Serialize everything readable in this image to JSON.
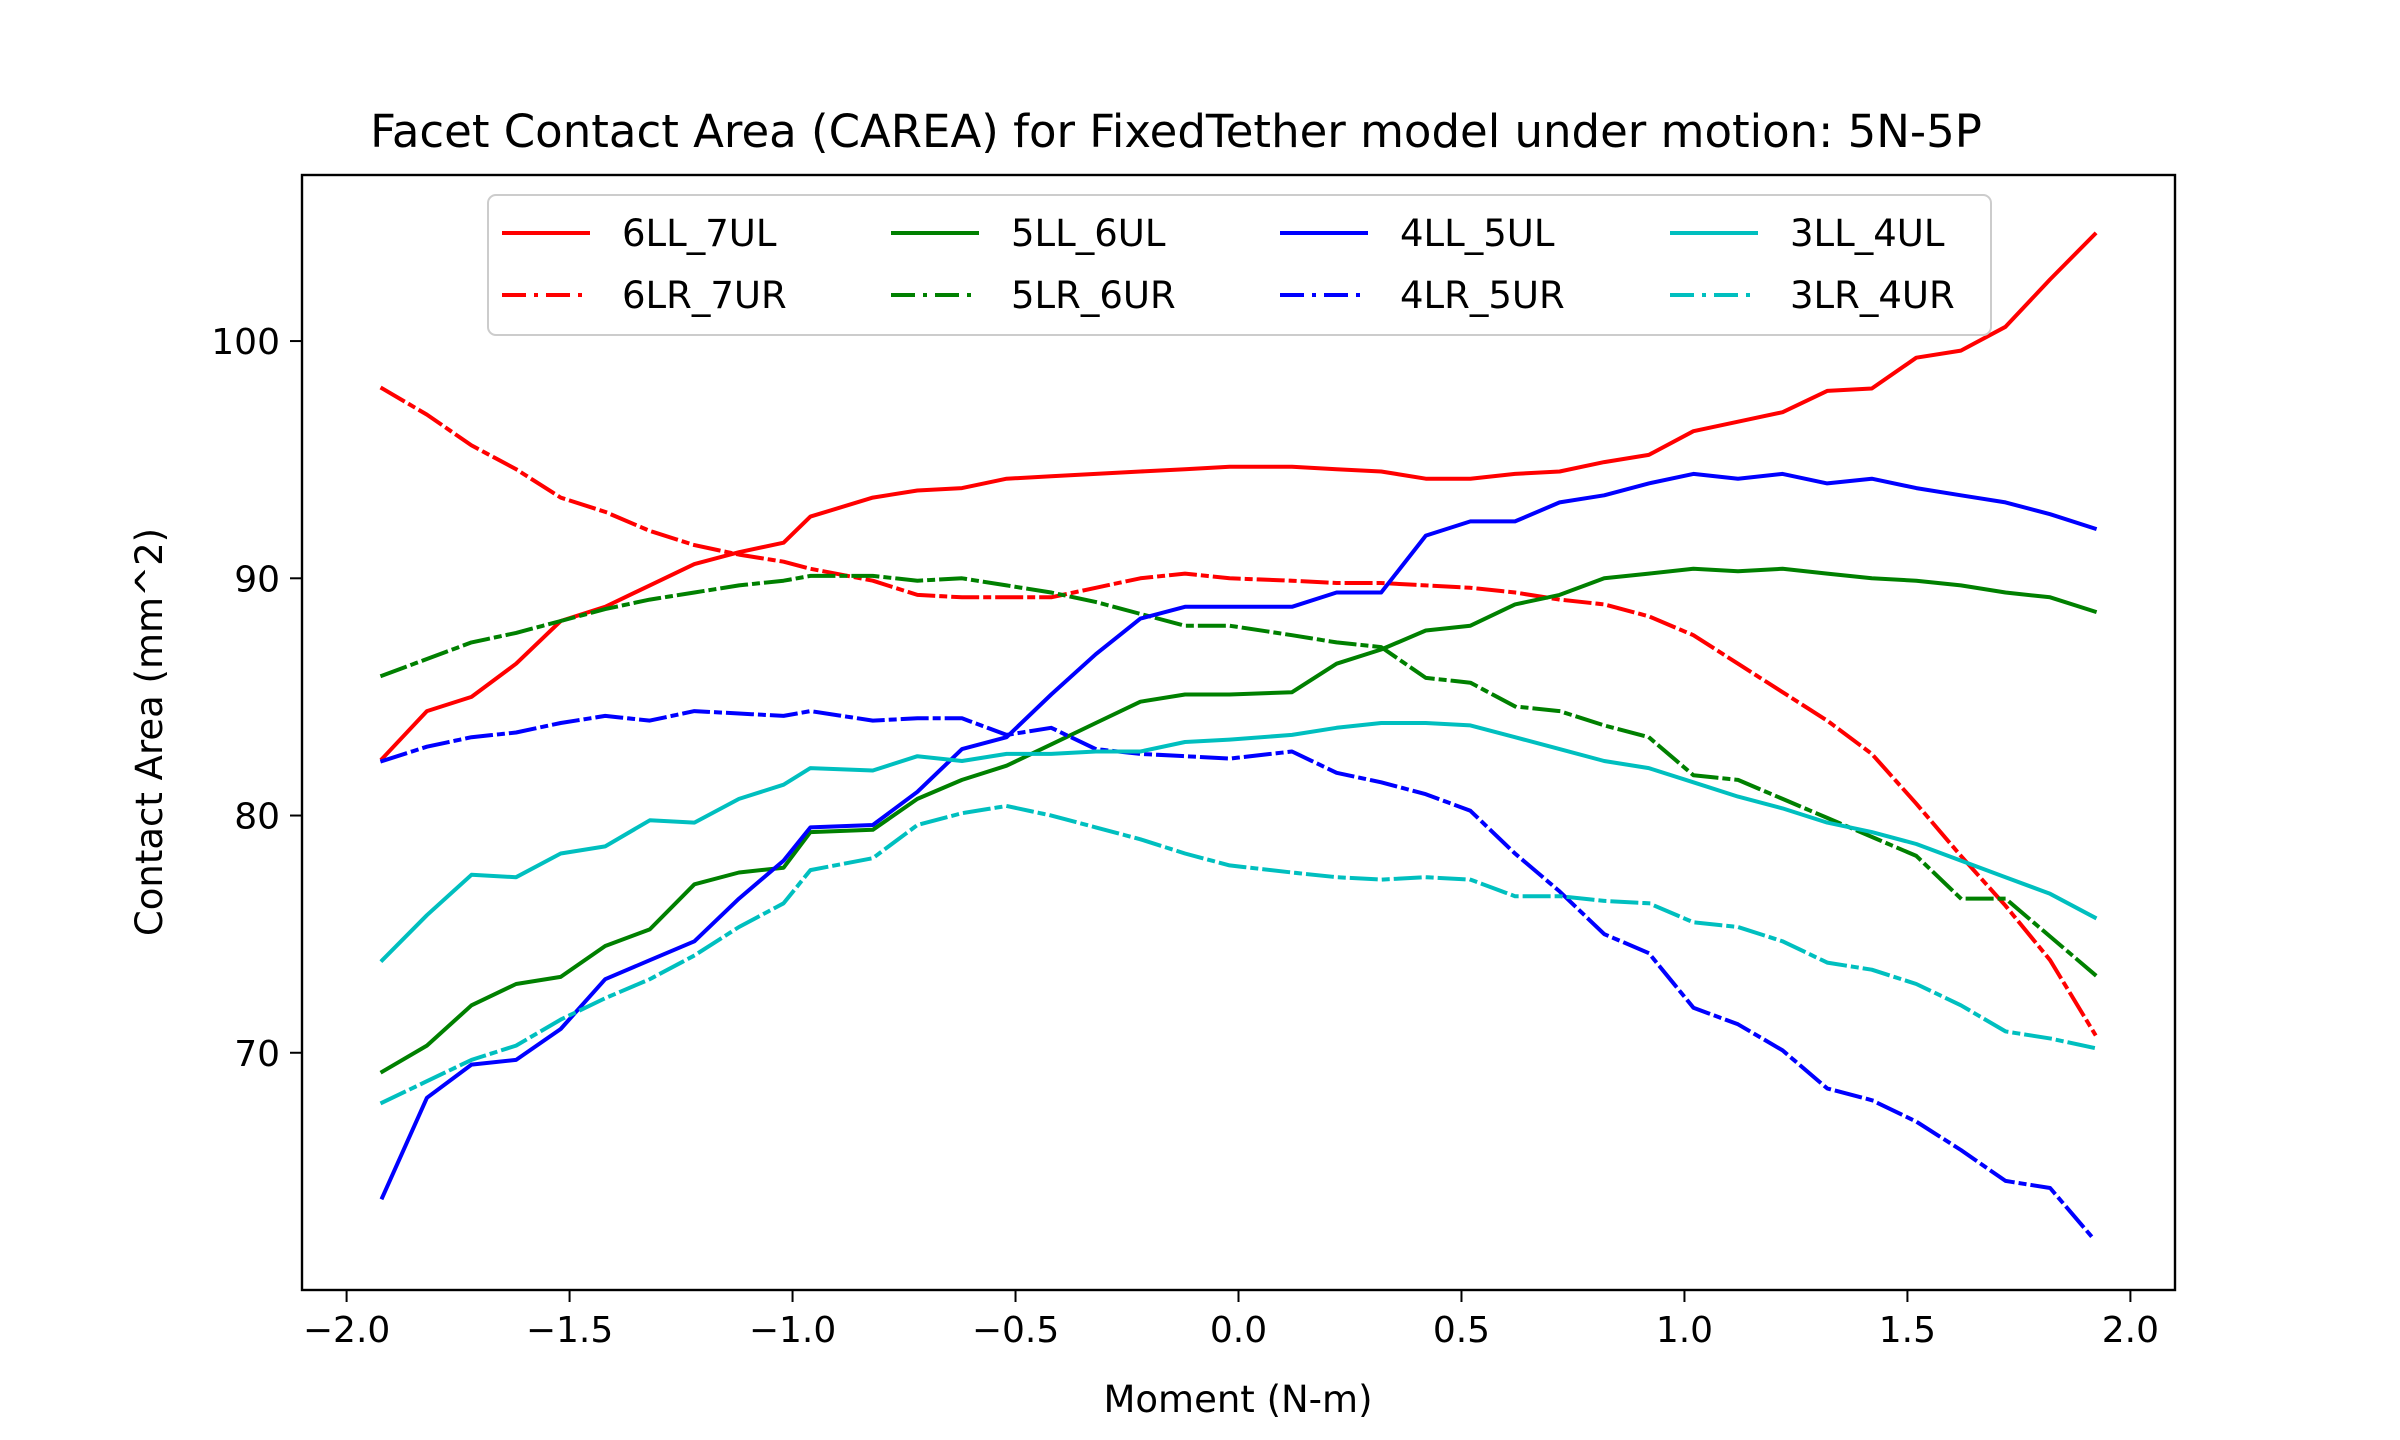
{
  "chart_data": {
    "type": "line",
    "title": "Facet Contact Area (CAREA) for FixedTether model under motion: 5N-5P",
    "xlabel": "Moment (N-m)",
    "ylabel": "Contact Area (mm^2)",
    "xlim": [
      -2.1,
      2.1
    ],
    "ylim": [
      60,
      107
    ],
    "xticks": [
      -2.0,
      -1.5,
      -1.0,
      -0.5,
      0.0,
      0.5,
      1.0,
      1.5,
      2.0
    ],
    "xtick_labels": [
      "−2.0",
      "−1.5",
      "−1.0",
      "−0.5",
      "0.0",
      "0.5",
      "1.0",
      "1.5",
      "2.0"
    ],
    "yticks": [
      70,
      80,
      90,
      100
    ],
    "ytick_labels": [
      "70",
      "80",
      "90",
      "100"
    ],
    "grid": false,
    "legend": {
      "placement": "upper-center",
      "ncol": 4
    },
    "x": [
      -1.92,
      -1.82,
      -1.72,
      -1.62,
      -1.52,
      -1.42,
      -1.32,
      -1.22,
      -1.12,
      -1.02,
      -0.96,
      -0.82,
      -0.72,
      -0.62,
      -0.52,
      -0.42,
      -0.32,
      -0.22,
      -0.12,
      -0.02,
      0.12,
      0.22,
      0.32,
      0.42,
      0.52,
      0.62,
      0.72,
      0.82,
      0.92,
      1.02,
      1.12,
      1.22,
      1.32,
      1.42,
      1.52,
      1.62,
      1.72,
      1.82,
      1.92
    ],
    "series": [
      {
        "name": "6LL_7UL",
        "color": "#ff0000",
        "dash": "solid",
        "values": [
          82.4,
          84.4,
          85.0,
          86.4,
          88.2,
          88.8,
          89.7,
          90.6,
          91.1,
          91.5,
          92.6,
          93.4,
          93.7,
          93.8,
          94.2,
          94.3,
          94.4,
          94.5,
          94.6,
          94.7,
          94.7,
          94.6,
          94.5,
          94.2,
          94.2,
          94.4,
          94.5,
          94.9,
          95.2,
          96.2,
          96.6,
          97.0,
          97.9,
          98.0,
          99.3,
          99.6,
          100.6,
          102.6,
          104.5
        ]
      },
      {
        "name": "6LR_7UR",
        "color": "#ff0000",
        "dash": "dashdot",
        "values": [
          98.0,
          96.9,
          95.6,
          94.6,
          93.4,
          92.8,
          92.0,
          91.4,
          91.0,
          90.7,
          90.4,
          89.9,
          89.3,
          89.2,
          89.2,
          89.2,
          89.6,
          90.0,
          90.2,
          90.0,
          89.9,
          89.8,
          89.8,
          89.7,
          89.6,
          89.4,
          89.1,
          88.9,
          88.4,
          87.6,
          86.4,
          85.2,
          84.0,
          82.6,
          80.5,
          78.3,
          76.2,
          73.9,
          70.8
        ]
      },
      {
        "name": "5LL_6UL",
        "color": "#008000",
        "dash": "solid",
        "values": [
          69.2,
          70.3,
          72.0,
          72.9,
          73.2,
          74.5,
          75.2,
          77.1,
          77.6,
          77.8,
          79.3,
          79.4,
          80.7,
          81.5,
          82.1,
          83.0,
          83.9,
          84.8,
          85.1,
          85.1,
          85.2,
          86.4,
          87.0,
          87.8,
          88.0,
          88.9,
          89.3,
          90.0,
          90.2,
          90.4,
          90.3,
          90.4,
          90.2,
          90.0,
          89.9,
          89.7,
          89.4,
          89.2,
          88.6
        ]
      },
      {
        "name": "5LR_6UR",
        "color": "#008000",
        "dash": "dashdot",
        "values": [
          85.9,
          86.6,
          87.3,
          87.7,
          88.2,
          88.7,
          89.1,
          89.4,
          89.7,
          89.9,
          90.1,
          90.1,
          89.9,
          90.0,
          89.7,
          89.4,
          89.0,
          88.5,
          88.0,
          88.0,
          87.6,
          87.3,
          87.1,
          85.8,
          85.6,
          84.6,
          84.4,
          83.8,
          83.3,
          81.7,
          81.5,
          80.7,
          79.9,
          79.1,
          78.3,
          76.5,
          76.5,
          74.9,
          73.3
        ]
      },
      {
        "name": "4LL_5UL",
        "color": "#0000ff",
        "dash": "solid",
        "values": [
          63.9,
          68.1,
          69.5,
          69.7,
          71.0,
          73.1,
          73.9,
          74.7,
          76.5,
          78.1,
          79.5,
          79.6,
          81.0,
          82.8,
          83.3,
          85.1,
          86.8,
          88.3,
          88.8,
          88.8,
          88.8,
          89.4,
          89.4,
          91.8,
          92.4,
          92.4,
          93.2,
          93.5,
          94.0,
          94.4,
          94.2,
          94.4,
          94.0,
          94.2,
          93.8,
          93.5,
          93.2,
          92.7,
          92.1
        ]
      },
      {
        "name": "4LR_5UR",
        "color": "#0000ff",
        "dash": "dashdot",
        "values": [
          82.3,
          82.9,
          83.3,
          83.5,
          83.9,
          84.2,
          84.0,
          84.4,
          84.3,
          84.2,
          84.4,
          84.0,
          84.1,
          84.1,
          83.4,
          83.7,
          82.8,
          82.6,
          82.5,
          82.4,
          82.7,
          81.8,
          81.4,
          80.9,
          80.2,
          78.4,
          76.8,
          75.0,
          74.2,
          71.9,
          71.2,
          70.1,
          68.5,
          68.0,
          67.1,
          65.9,
          64.6,
          64.3,
          62.1
        ]
      },
      {
        "name": "3LL_4UL",
        "color": "#00bfbf",
        "dash": "solid",
        "values": [
          73.9,
          75.8,
          77.5,
          77.4,
          78.4,
          78.7,
          79.8,
          79.7,
          80.7,
          81.3,
          82.0,
          81.9,
          82.5,
          82.3,
          82.6,
          82.6,
          82.7,
          82.7,
          83.1,
          83.2,
          83.4,
          83.7,
          83.9,
          83.9,
          83.8,
          83.3,
          82.8,
          82.3,
          82.0,
          81.4,
          80.8,
          80.3,
          79.7,
          79.3,
          78.8,
          78.1,
          77.4,
          76.7,
          75.7
        ]
      },
      {
        "name": "3LR_4UR",
        "color": "#00bfbf",
        "dash": "dashdot",
        "values": [
          67.9,
          68.8,
          69.7,
          70.3,
          71.4,
          72.3,
          73.1,
          74.1,
          75.3,
          76.3,
          77.7,
          78.2,
          79.6,
          80.1,
          80.4,
          80.0,
          79.5,
          79.0,
          78.4,
          77.9,
          77.6,
          77.4,
          77.3,
          77.4,
          77.3,
          76.6,
          76.6,
          76.4,
          76.3,
          75.5,
          75.3,
          74.7,
          73.8,
          73.5,
          72.9,
          72.0,
          70.9,
          70.6,
          70.2
        ]
      }
    ]
  }
}
